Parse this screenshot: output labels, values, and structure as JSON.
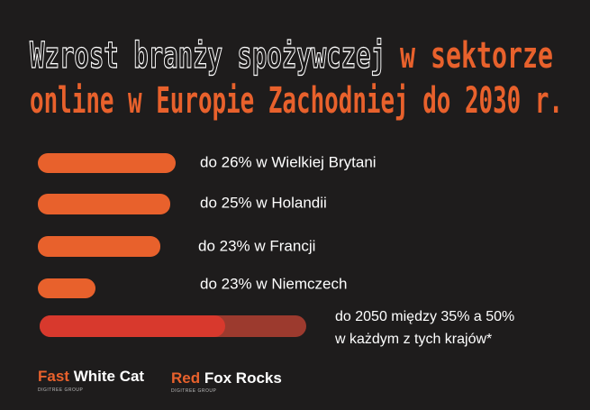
{
  "title": {
    "line1_white": "Wzrost branży spożywczej",
    "line1_orange": "w sektorze",
    "line2": "online w Europie Zachodniej do 2030 r."
  },
  "items": [
    "do 26% w Wielkiej Brytani",
    "do 25% w Holandii",
    "do 23% w Francji",
    "do 23% w Niemczech"
  ],
  "summary": [
    "do 2050 między 35% a 50%",
    "w każdym z tych krajów*"
  ],
  "logos": [
    {
      "accent": "Fast",
      "rest": "White Cat",
      "group": "DIGITREE GROUP"
    },
    {
      "accent": "Red",
      "rest": "Fox Rocks",
      "group": "DIGITREE GROUP"
    }
  ]
}
